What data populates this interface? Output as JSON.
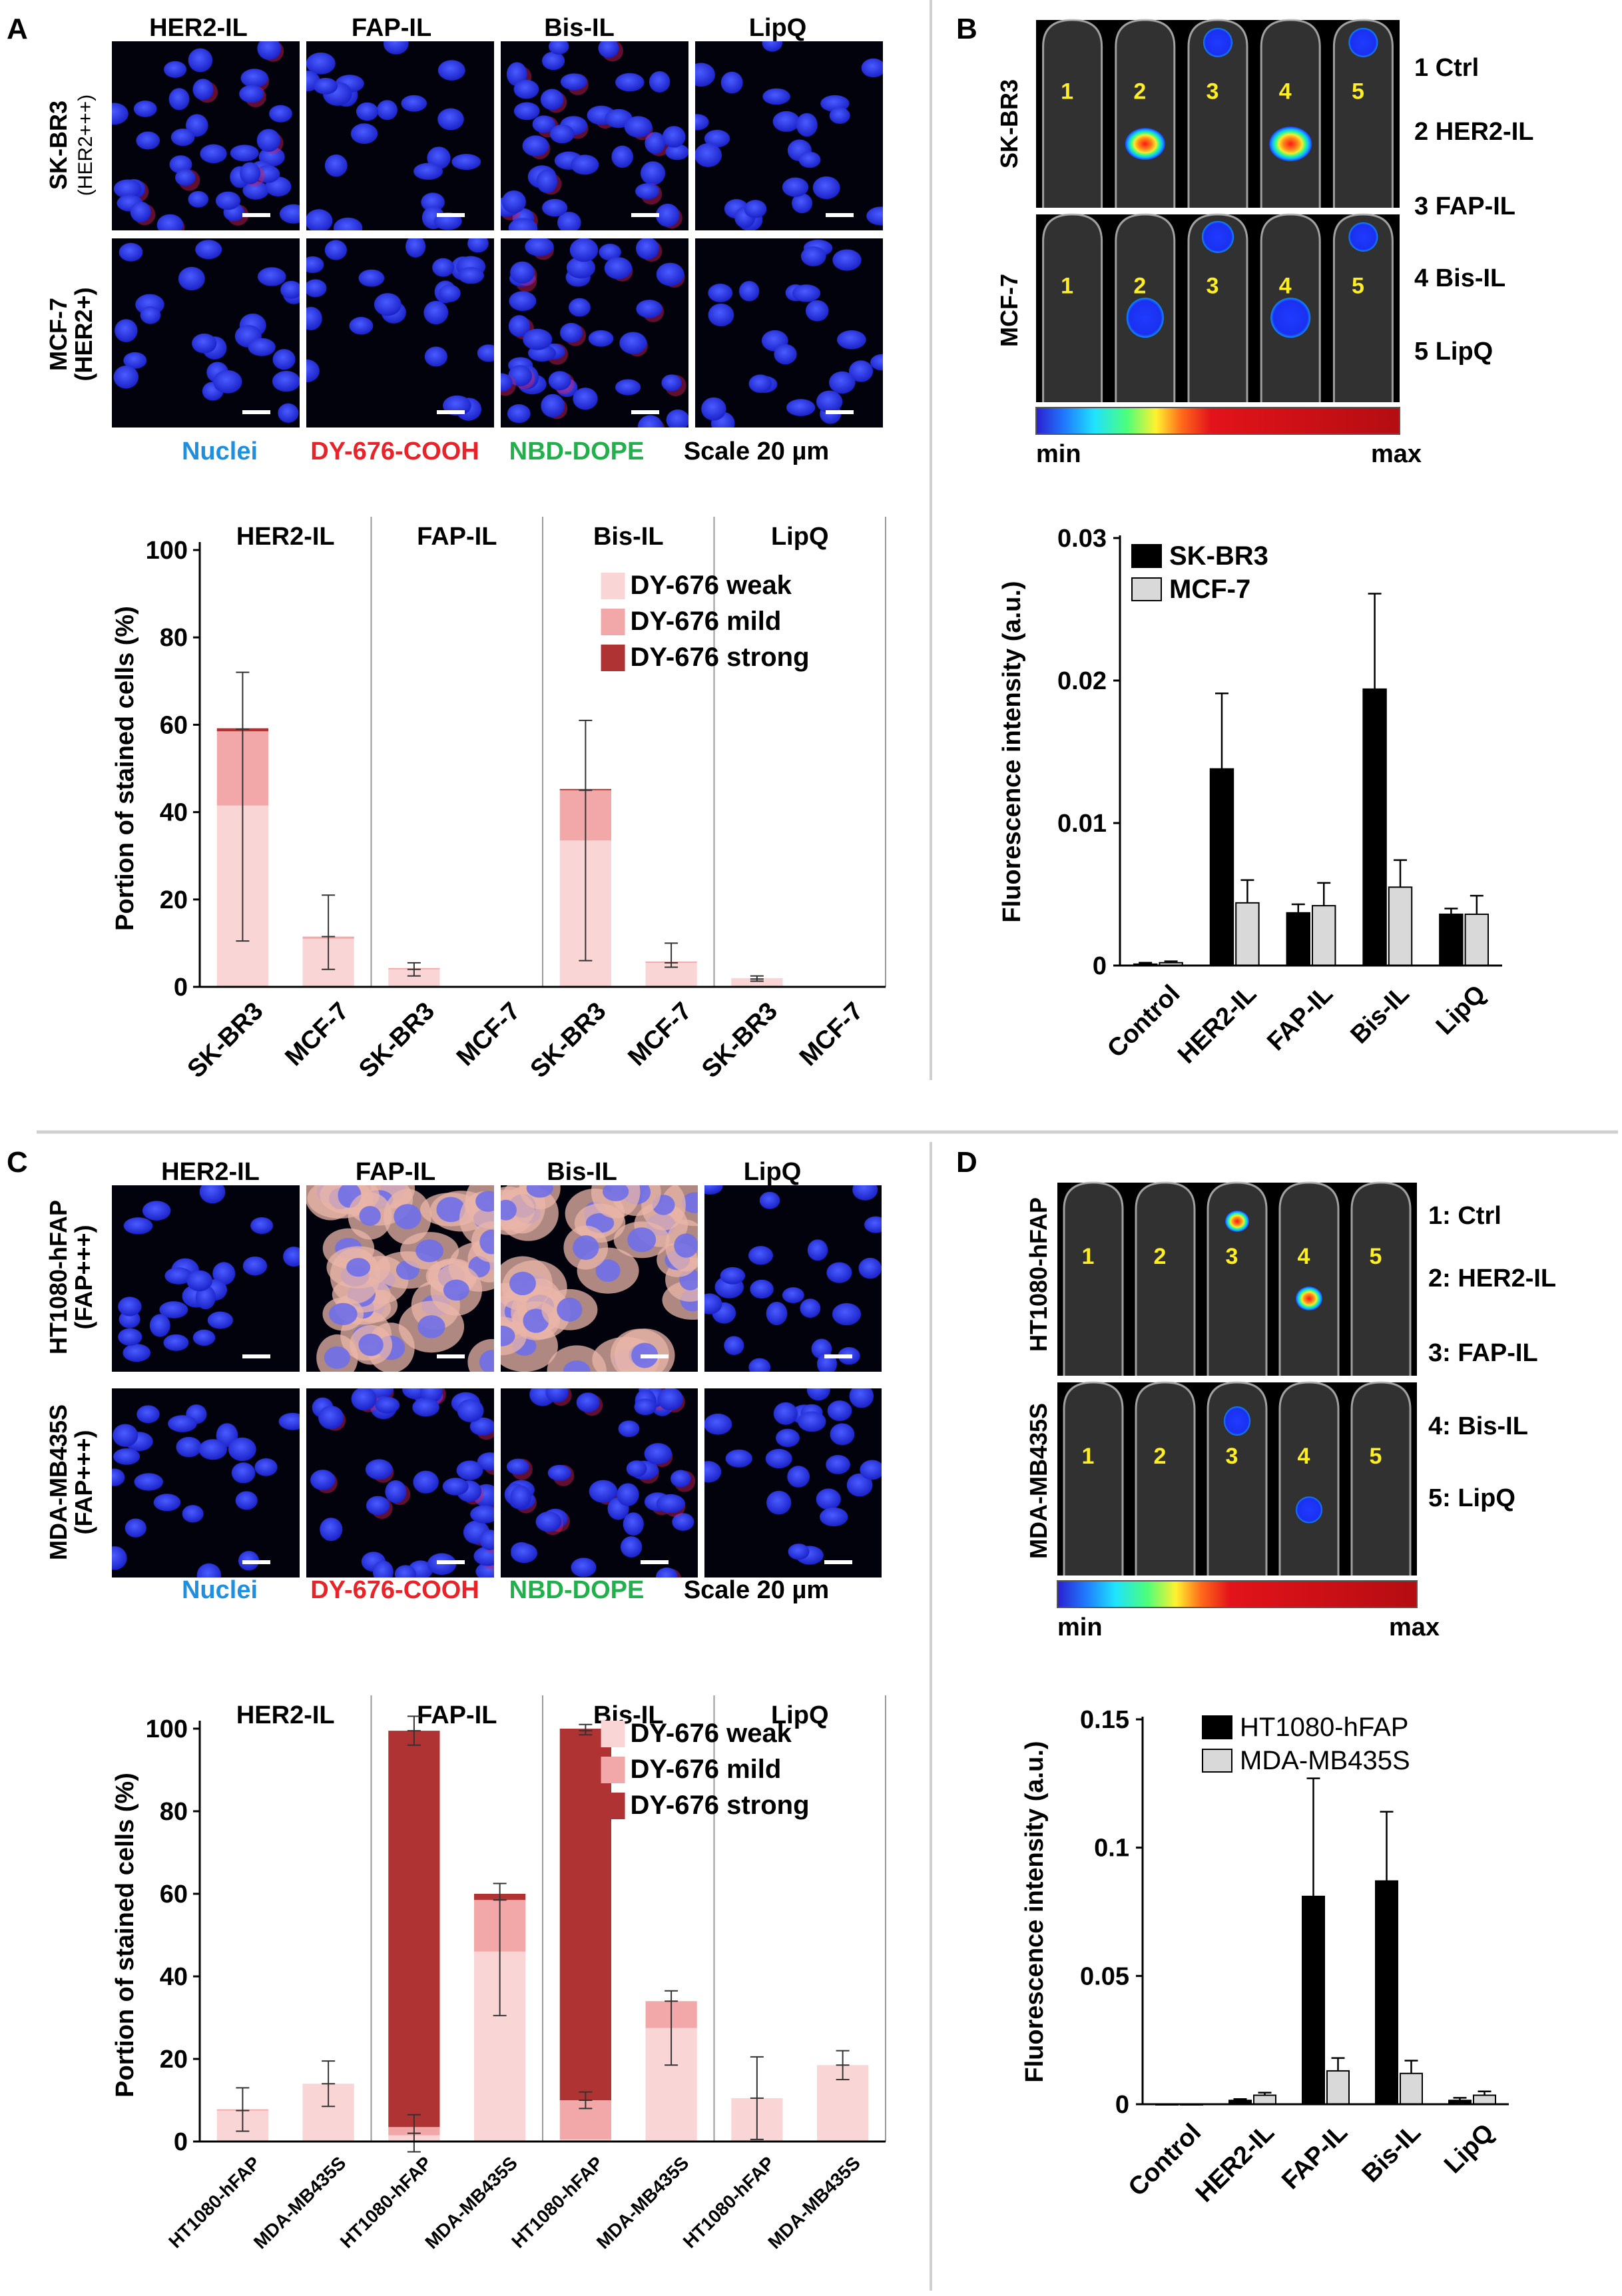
{
  "colors": {
    "nuclei": "#1f8fe0",
    "dy676": "#e8242a",
    "nbd": "#21b04b",
    "weak": "#f9d5d5",
    "mild": "#f2a8a8",
    "strong": "#b03333",
    "bar_black": "#000000",
    "bar_gray": "#d9d9d9"
  },
  "panelA": {
    "letter": "A",
    "col_headers": [
      "HER2-IL",
      "FAP-IL",
      "Bis-IL",
      "LipQ"
    ],
    "row_labels": [
      [
        "SK-BR3",
        "(HER2+++)"
      ],
      [
        "MCF-7",
        "(HER2+)"
      ]
    ],
    "stain_legend": {
      "nuclei": "Nuclei",
      "dy": "DY-676-COOH",
      "nbd": "NBD-DOPE",
      "scale": "Scale 20 µm"
    }
  },
  "panelB": {
    "letter": "B",
    "row_labels": [
      "SK-BR3",
      "MCF-7"
    ],
    "tube_numbers": [
      "1",
      "2",
      "3",
      "4",
      "5"
    ],
    "legend": [
      "1 Ctrl",
      "2 HER2-IL",
      "3 FAP-IL",
      "4 Bis-IL",
      "5 LipQ"
    ],
    "colorbar": {
      "min": "min",
      "max": "max"
    }
  },
  "panelC": {
    "letter": "C",
    "col_headers": [
      "HER2-IL",
      "FAP-IL",
      "Bis-IL",
      "LipQ"
    ],
    "row_labels": [
      [
        "HT1080-hFAP",
        "(FAP+++)"
      ],
      [
        "MDA-MB435S",
        "(FAP+++)"
      ]
    ],
    "stain_legend": {
      "nuclei": "Nuclei",
      "dy": "DY-676-COOH",
      "nbd": "NBD-DOPE",
      "scale": "Scale 20 µm"
    }
  },
  "panelD": {
    "letter": "D",
    "row_labels": [
      "HT1080-hFAP",
      "MDA-MB435S"
    ],
    "tube_numbers": [
      "1",
      "2",
      "3",
      "4",
      "5"
    ],
    "legend": [
      "1: Ctrl",
      "2: HER2-IL",
      "3: FAP-IL",
      "4: Bis-IL",
      "5: LipQ"
    ],
    "colorbar": {
      "min": "min",
      "max": "max"
    }
  },
  "chart_data": [
    {
      "id": "A-bottom",
      "type": "bar",
      "stacked": true,
      "groups": [
        "HER2-IL",
        "FAP-IL",
        "Bis-IL",
        "LipQ"
      ],
      "categories": [
        "SK-BR3",
        "MCF-7",
        "SK-BR3",
        "MCF-7",
        "SK-BR3",
        "MCF-7",
        "SK-BR3",
        "MCF-7"
      ],
      "series": [
        {
          "name": "DY-676 weak",
          "values": [
            41.5,
            11,
            4,
            0,
            33.5,
            5.5,
            2,
            0
          ]
        },
        {
          "name": "DY-676 mild",
          "values": [
            17,
            0.5,
            0.3,
            0,
            11.5,
            0.3,
            0,
            0
          ]
        },
        {
          "name": "DY-676 strong",
          "values": [
            0.7,
            0,
            0,
            0,
            0.3,
            0,
            0,
            0
          ]
        }
      ],
      "errors": [
        {
          "center": 59,
          "low": 10.5,
          "high": 72
        },
        {
          "center": 11.5,
          "low": 4,
          "high": 21
        },
        {
          "center": 4,
          "low": 2.5,
          "high": 5.5
        },
        null,
        {
          "center": 45,
          "low": 6,
          "high": 61
        },
        {
          "center": 5.5,
          "low": 4.5,
          "high": 10
        },
        {
          "center": 1.8,
          "low": 1.3,
          "high": 2.5
        },
        null
      ],
      "ylabel": "Portion of stained cells (%)",
      "ylim": [
        0,
        100
      ],
      "yticks": [
        0,
        20,
        40,
        60,
        80,
        100
      ],
      "legend_position": "top-right"
    },
    {
      "id": "B-bottom",
      "type": "bar",
      "categories": [
        "Control",
        "HER2-IL",
        "FAP-IL",
        "Bis-IL",
        "LipQ"
      ],
      "series": [
        {
          "name": "SK-BR3",
          "values": [
            0.0001,
            0.0138,
            0.0037,
            0.0194,
            0.0036
          ],
          "errors": [
            0.0001,
            0.0053,
            0.0006,
            0.0067,
            0.0004
          ]
        },
        {
          "name": "MCF-7",
          "values": [
            0.0002,
            0.0044,
            0.0042,
            0.0055,
            0.0036
          ],
          "errors": [
            0.0001,
            0.0016,
            0.0016,
            0.0019,
            0.0013
          ]
        }
      ],
      "ylabel": "Fluorescence intensity (a.u.)",
      "ylim": [
        0,
        0.03
      ],
      "yticks": [
        "0",
        "0.01",
        "0.02",
        "0.03"
      ],
      "legend_position": "top-left"
    },
    {
      "id": "C-bottom",
      "type": "bar",
      "stacked": true,
      "groups": [
        "HER2-IL",
        "FAP-IL",
        "Bis-IL",
        "LipQ"
      ],
      "categories": [
        "HT1080-hFAP",
        "MDA-MB435S",
        "HT1080-hFAP",
        "MDA-MB435S",
        "HT1080-hFAP",
        "MDA-MB435S",
        "HT1080-hFAP",
        "MDA-MB435S"
      ],
      "series": [
        {
          "name": "DY-676 weak",
          "values": [
            7.5,
            14,
            1.5,
            46,
            0.5,
            27.5,
            10.5,
            18.5
          ]
        },
        {
          "name": "DY-676 mild",
          "values": [
            0.3,
            0,
            2,
            12.5,
            9.5,
            6.5,
            0,
            0
          ]
        },
        {
          "name": "DY-676 strong",
          "values": [
            0,
            0,
            96,
            1.5,
            90,
            0,
            0,
            0
          ]
        }
      ],
      "errors": [
        {
          "center": 7.5,
          "low": 2.5,
          "high": 13
        },
        {
          "center": 14,
          "low": 8.5,
          "high": 19.5
        },
        {
          "center": 2,
          "low": -2.5,
          "high": 6.5
        },
        {
          "center": 58.5,
          "low": 30.5,
          "high": 62.5
        },
        {
          "center": 10,
          "low": 8,
          "high": 12
        },
        {
          "center": 34,
          "low": 18.5,
          "high": 36.5
        },
        {
          "center": 10.5,
          "low": 0.5,
          "high": 20.5
        },
        {
          "center": 18.5,
          "low": 15,
          "high": 22
        }
      ],
      "top_errors": [
        null,
        null,
        {
          "center": 99.5,
          "low": 96,
          "high": 103
        },
        null,
        {
          "center": 99.5,
          "low": 98.5,
          "high": 101
        },
        null,
        null,
        null
      ],
      "ylabel": "Portion of stained cells (%)",
      "ylim": [
        0,
        100
      ],
      "yticks": [
        0,
        20,
        40,
        60,
        80,
        100
      ],
      "legend_position": "top-right"
    },
    {
      "id": "D-bottom",
      "type": "bar",
      "categories": [
        "Control",
        "HER2-IL",
        "FAP-IL",
        "Bis-IL",
        "LipQ"
      ],
      "series": [
        {
          "name": "HT1080-hFAP",
          "values": [
            0,
            0.0015,
            0.081,
            0.087,
            0.0015
          ],
          "errors": [
            0,
            0.0005,
            0.046,
            0.027,
            0.001
          ]
        },
        {
          "name": "MDA-MB435S",
          "values": [
            0,
            0.0035,
            0.013,
            0.012,
            0.0035
          ],
          "errors": [
            0,
            0.001,
            0.005,
            0.005,
            0.0015
          ]
        }
      ],
      "ylabel": "Fluorescence intensity (a.u.)",
      "ylim": [
        0,
        0.15
      ],
      "yticks": [
        "0",
        "0.05",
        "0.1",
        "0.15"
      ],
      "legend_position": "top-right"
    }
  ]
}
